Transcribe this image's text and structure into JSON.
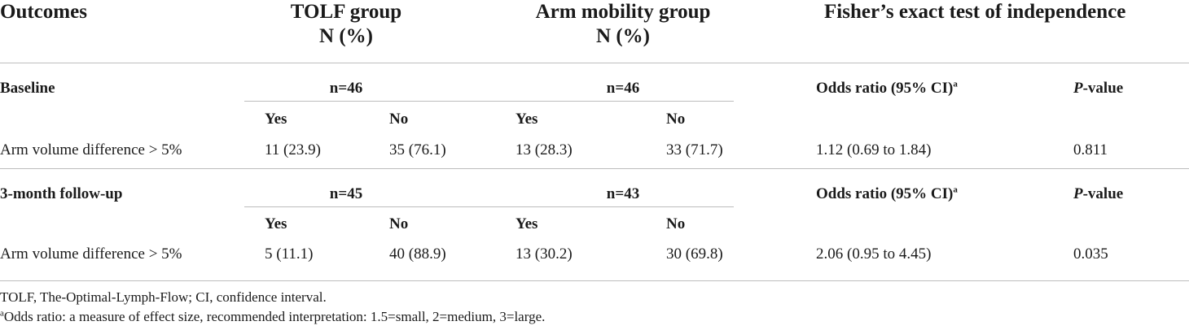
{
  "header": {
    "outcomes": "Outcomes",
    "tolf_line1": "TOLF group",
    "tolf_line2": "N (%)",
    "arm_line1": "Arm mobility group",
    "arm_line2": "N (%)",
    "fisher": "Fisher’s exact test of independence"
  },
  "sections": [
    {
      "label": "Baseline",
      "tolf_n": "n=46",
      "arm_n": "n=46",
      "or_label": "Odds ratio (95% CI)",
      "or_sup": "a",
      "p_italic": "P",
      "p_rest": "-value",
      "yes": "Yes",
      "no": "No",
      "row_label": "Arm volume difference > 5%",
      "tolf_yes": "11 (23.9)",
      "tolf_no": "35 (76.1)",
      "arm_yes": "13 (28.3)",
      "arm_no": "33 (71.7)",
      "or_value": "1.12 (0.69 to 1.84)",
      "p_value": "0.811"
    },
    {
      "label": "3-month follow-up",
      "tolf_n": "n=45",
      "arm_n": "n=43",
      "or_label": "Odds ratio (95% CI)",
      "or_sup": "a",
      "p_italic": "P",
      "p_rest": "-value",
      "yes": "Yes",
      "no": "No",
      "row_label": "Arm volume difference > 5%",
      "tolf_yes": "5 (11.1)",
      "tolf_no": "40 (88.9)",
      "arm_yes": "13 (30.2)",
      "arm_no": "30 (69.8)",
      "or_value": "2.06 (0.95 to 4.45)",
      "p_value": "0.035"
    }
  ],
  "footnotes": {
    "abbrev": "TOLF, The-Optimal-Lymph-Flow; CI, confidence interval.",
    "note_sup": "a",
    "note_text": "Odds ratio: a measure of effect size, recommended interpretation: 1.5=small, 2=medium, 3=large."
  }
}
